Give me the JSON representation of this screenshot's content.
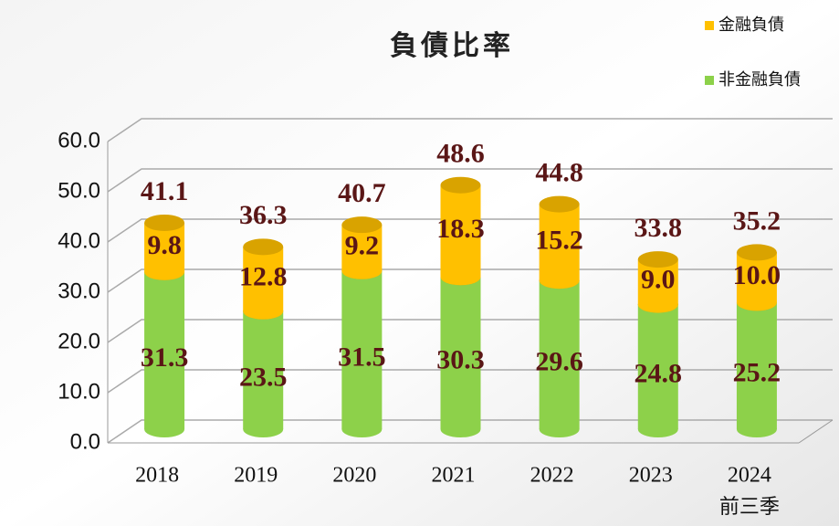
{
  "chart_data": {
    "type": "stacked-cylinder",
    "title": "負債比率",
    "categories": [
      "2018",
      "2019",
      "2020",
      "2021",
      "2022",
      "2023",
      "2024"
    ],
    "annotations": [
      "前三季"
    ],
    "series": [
      {
        "name": "非金融負債",
        "color": "#8dd14a",
        "values": [
          31.3,
          23.5,
          31.5,
          30.3,
          29.6,
          24.8,
          25.2
        ]
      },
      {
        "name": "金融負債",
        "color": "#ffc000",
        "values": [
          9.8,
          12.8,
          9.2,
          18.3,
          15.2,
          9.0,
          10.0
        ],
        "value_labels": [
          "9.8",
          "12.8",
          "9.2",
          "18.3",
          "15.2",
          "9.0",
          "10.0"
        ]
      }
    ],
    "totals": {
      "values": [
        41.1,
        36.3,
        40.7,
        48.6,
        44.8,
        33.8,
        35.2
      ]
    },
    "ylim": [
      0,
      60
    ],
    "yticks": [
      {
        "value": 0,
        "label": "0.0"
      },
      {
        "value": 10,
        "label": "10.0"
      },
      {
        "value": 20,
        "label": "20.0"
      },
      {
        "value": 30,
        "label": "30.0"
      },
      {
        "value": 40,
        "label": "40.0"
      },
      {
        "value": 50,
        "label": "50.0"
      },
      {
        "value": 60,
        "label": "60.0"
      }
    ],
    "grid": true,
    "legend": "top-right"
  }
}
